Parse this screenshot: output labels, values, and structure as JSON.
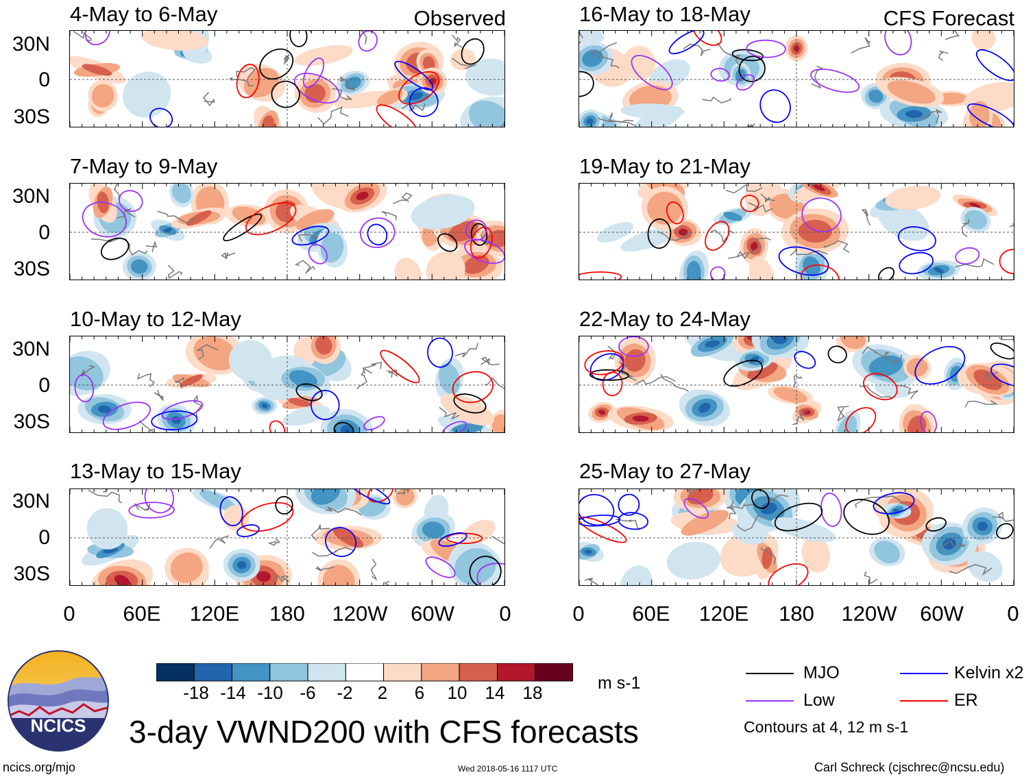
{
  "columns": {
    "left_title": "Observed",
    "right_title": "CFS Forecast"
  },
  "panels_left": [
    {
      "title": "4-May to 6-May"
    },
    {
      "title": "7-May to 9-May"
    },
    {
      "title": "10-May to 12-May"
    },
    {
      "title": "13-May to 15-May"
    }
  ],
  "panels_right": [
    {
      "title": "16-May to 18-May"
    },
    {
      "title": "19-May to 21-May"
    },
    {
      "title": "22-May to 24-May"
    },
    {
      "title": "25-May to 27-May"
    }
  ],
  "y_axis": {
    "labels": [
      "30N",
      "0",
      "30S"
    ]
  },
  "x_axis": {
    "labels": [
      "0",
      "60E",
      "120E",
      "180",
      "120W",
      "60W",
      "0"
    ]
  },
  "colorbar": {
    "labels": [
      "-18",
      "-14",
      "-10",
      "-6",
      "-2",
      "2",
      "6",
      "10",
      "14",
      "18"
    ],
    "colors": [
      "#053061",
      "#2166ac",
      "#4393c3",
      "#92c5de",
      "#d1e5f0",
      "#ffffff",
      "#fddbc7",
      "#f4a582",
      "#d6604d",
      "#b2182b",
      "#67001f"
    ],
    "units": "m s-1"
  },
  "legend": {
    "items": [
      {
        "label": "MJO",
        "color": "#000000"
      },
      {
        "label": "Low",
        "color": "#9b30ff"
      },
      {
        "label": "Kelvin x2",
        "color": "#0000ff"
      },
      {
        "label": "ER",
        "color": "#ff0000"
      }
    ],
    "contour_note": "Contours at 4, 12 m s-1"
  },
  "logo": {
    "text": "NCICS"
  },
  "footer": {
    "title": "3-day VWND200 with CFS forecasts",
    "url": "ncics.org/mjo",
    "timestamp": "Wed 2018-05-16 1117 UTC",
    "author": "Carl Schreck (cjschrec@ncsu.edu)"
  }
}
